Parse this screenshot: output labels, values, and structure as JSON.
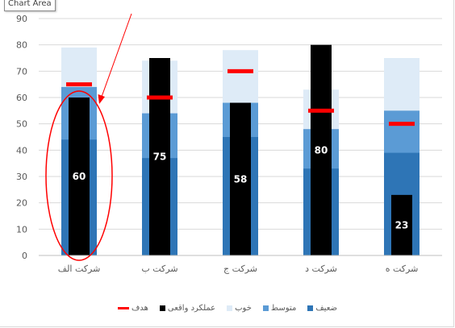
{
  "tooltip": {
    "text": "Chart Area"
  },
  "chart_data": {
    "type": "bar",
    "categories": [
      "شرکت الف",
      "شرکت ب",
      "شرکت ج",
      "شرکت د",
      "شرکت ه"
    ],
    "ylim": [
      0,
      90
    ],
    "yticks": [
      0,
      10,
      20,
      30,
      40,
      50,
      60,
      70,
      80,
      90
    ],
    "grid": true,
    "legend_position": "bottom",
    "series": [
      {
        "name": "ضعیف",
        "color": "#2e75b6",
        "values": [
          44,
          37,
          45,
          33,
          39
        ]
      },
      {
        "name": "متوسط",
        "color": "#5b9bd5",
        "values": [
          64,
          54,
          58,
          48,
          55
        ]
      },
      {
        "name": "خوب",
        "color": "#deebf7",
        "values": [
          79,
          74,
          78,
          63,
          75
        ]
      },
      {
        "name": "عملکرد واقعی",
        "color": "#000000",
        "values": [
          60,
          75,
          58,
          80,
          23
        ]
      },
      {
        "name": "هدف",
        "color": "#ff0000",
        "values": [
          65,
          60,
          70,
          55,
          50
        ]
      }
    ],
    "data_labels": [
      "60",
      "75",
      "58",
      "80",
      "23"
    ],
    "annotations": [
      "red ellipse around first category with arrow"
    ]
  }
}
